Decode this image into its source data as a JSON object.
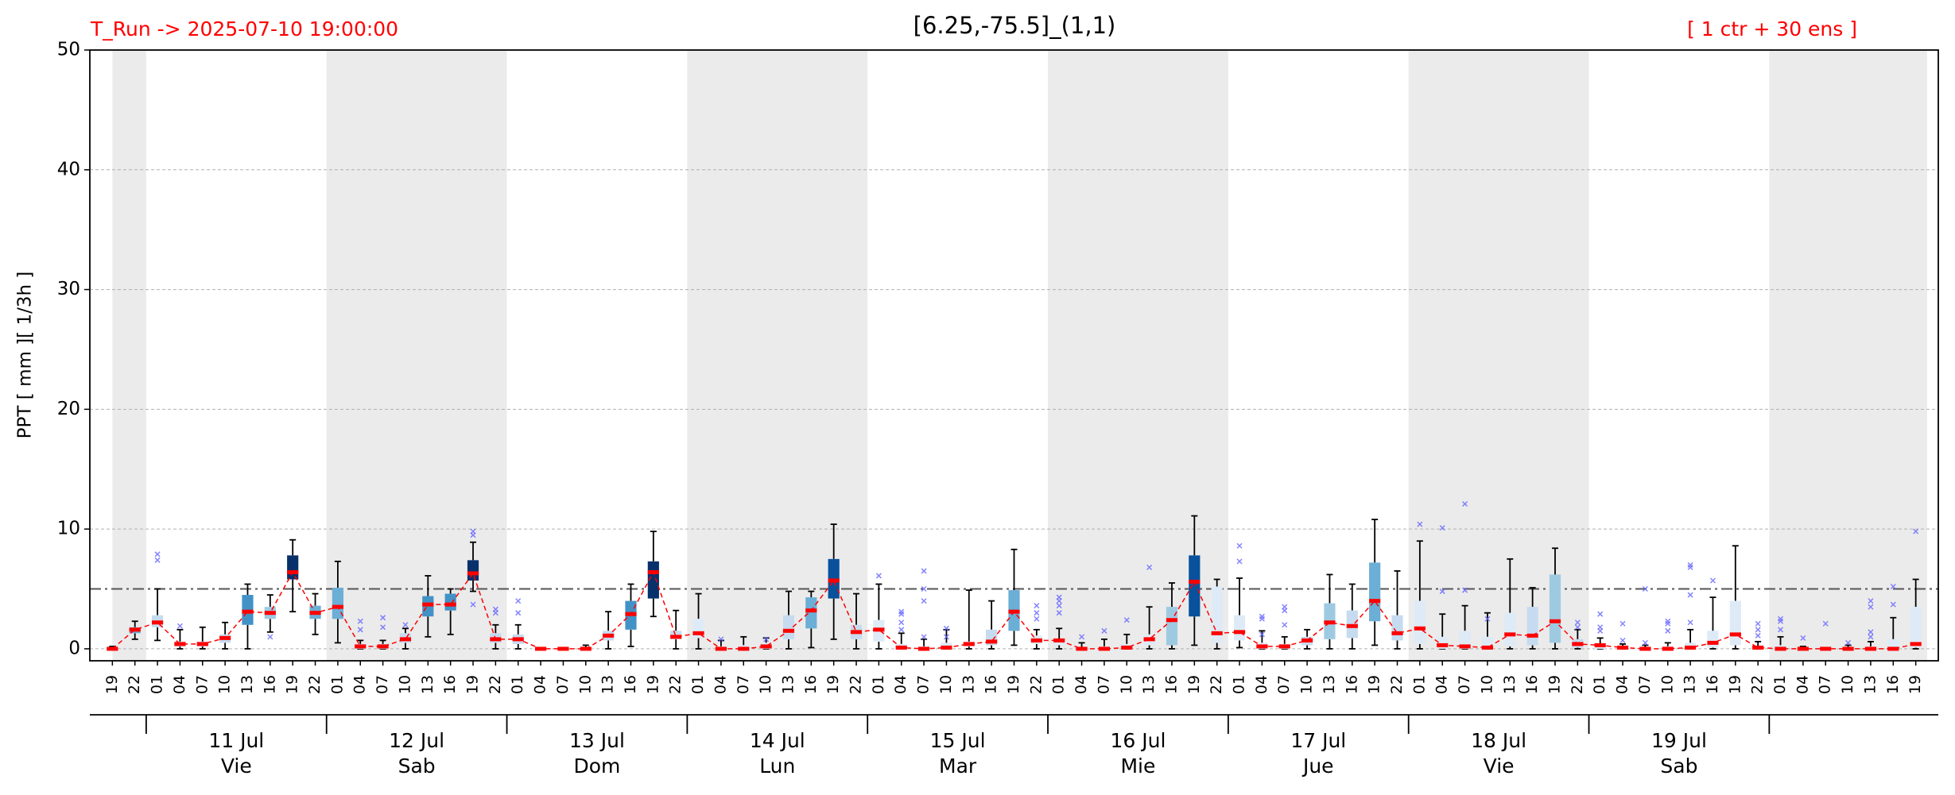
{
  "chart_data": {
    "type": "box",
    "title": "[6.25,-75.5]_(1,1)",
    "run_label": "T_Run -> 2025-07-10  19:00:00",
    "members_label": "[ 1 ctr + 30 ens ]",
    "ylabel": "PPT  [ mm ][ 1/3h ]",
    "ylim": [
      -1,
      50
    ],
    "yticks": [
      0,
      10,
      20,
      30,
      40,
      50
    ],
    "grid": true,
    "threshold": 5,
    "median_color": "#ff0000",
    "outlier_color": "#6666ff",
    "categories": [
      "19",
      "22",
      "01",
      "04",
      "07",
      "10",
      "13",
      "16",
      "19",
      "22",
      "01",
      "04",
      "07",
      "10",
      "13",
      "16",
      "19",
      "22",
      "01",
      "04",
      "07",
      "10",
      "13",
      "16",
      "19",
      "22",
      "01",
      "04",
      "07",
      "10",
      "13",
      "16",
      "19",
      "22",
      "01",
      "04",
      "07",
      "10",
      "13",
      "16",
      "19",
      "22",
      "01",
      "04",
      "07",
      "10",
      "13",
      "16",
      "19",
      "22",
      "01",
      "04",
      "07",
      "10",
      "13",
      "16",
      "19",
      "22",
      "01",
      "04",
      "07",
      "10",
      "13",
      "16",
      "19",
      "22",
      "01",
      "04",
      "07",
      "10",
      "13",
      "16",
      "19",
      "22",
      "01",
      "04",
      "07",
      "10",
      "13",
      "16",
      "19"
    ],
    "days": [
      {
        "date": "11 Jul",
        "weekday": "Vie"
      },
      {
        "date": "12 Jul",
        "weekday": "Sab"
      },
      {
        "date": "13 Jul",
        "weekday": "Dom"
      },
      {
        "date": "14 Jul",
        "weekday": "Lun"
      },
      {
        "date": "15 Jul",
        "weekday": "Mar"
      },
      {
        "date": "16 Jul",
        "weekday": "Mie"
      },
      {
        "date": "17 Jul",
        "weekday": "Jue"
      },
      {
        "date": "18 Jul",
        "weekday": "Vie"
      },
      {
        "date": "19 Jul",
        "weekday": "Sab"
      }
    ],
    "median": [
      0,
      1.6,
      2.2,
      0.4,
      0.4,
      0.9,
      3.1,
      3.0,
      6.4,
      3.0,
      3.5,
      0.2,
      0.2,
      0.8,
      3.7,
      3.7,
      6.3,
      0.8,
      0.8,
      0,
      0,
      0,
      1.1,
      2.9,
      6.4,
      1.0,
      1.3,
      0,
      0,
      0.2,
      1.5,
      3.2,
      5.7,
      1.4,
      1.6,
      0.1,
      0,
      0.1,
      0.4,
      0.6,
      3.1,
      0.7,
      0.7,
      0,
      0,
      0.1,
      0.8,
      2.4,
      5.6,
      1.3,
      1.4,
      0.2,
      0.2,
      0.7,
      2.2,
      1.9,
      4.0,
      1.3,
      1.7,
      0.3,
      0.2,
      0.1,
      1.2,
      1.1,
      2.3,
      0.4,
      0.3,
      0.1,
      0,
      0,
      0.1,
      0.5,
      1.2,
      0.1,
      0,
      0,
      0,
      0,
      0,
      0,
      0.4
    ],
    "q1": [
      0,
      1.3,
      1.8,
      0.2,
      0.2,
      0.5,
      2.0,
      2.5,
      5.8,
      2.5,
      2.5,
      0,
      0,
      0.5,
      2.7,
      3.2,
      5.7,
      0.5,
      0.4,
      0,
      0,
      0,
      0.7,
      1.6,
      4.2,
      0.8,
      0.9,
      0,
      0,
      0,
      0.8,
      1.7,
      4.2,
      0.8,
      0.6,
      0,
      0,
      0,
      0.2,
      0.3,
      1.5,
      0.4,
      0.3,
      0,
      0,
      0,
      0.3,
      0.3,
      2.7,
      0.5,
      0.7,
      0,
      0,
      0.3,
      0.8,
      0.9,
      2.3,
      0.7,
      0.4,
      0,
      0,
      0,
      0.2,
      0.3,
      0.5,
      0.1,
      0,
      0,
      0,
      0,
      0,
      0.1,
      0.3,
      0,
      0,
      0,
      0,
      0,
      0,
      0,
      0.1
    ],
    "q3": [
      0,
      1.8,
      2.8,
      0.6,
      0.6,
      1.2,
      4.5,
      3.5,
      7.8,
      3.6,
      5.1,
      0.4,
      0.4,
      1.3,
      4.4,
      4.6,
      7.4,
      1.3,
      1.2,
      0,
      0,
      0.1,
      1.5,
      4.0,
      7.3,
      1.5,
      2.5,
      0.2,
      0.3,
      0.5,
      2.8,
      4.3,
      7.5,
      2.0,
      2.4,
      0.4,
      0.2,
      0.5,
      0.6,
      1.6,
      4.9,
      1.1,
      0.8,
      0.1,
      0.2,
      0.4,
      1.2,
      3.5,
      7.8,
      5.2,
      2.8,
      0.5,
      0.4,
      1.0,
      3.8,
      3.2,
      7.2,
      2.8,
      4.0,
      1.0,
      1.5,
      1.0,
      3.0,
      3.5,
      6.2,
      0.8,
      0.3,
      0.1,
      0.1,
      0.2,
      0.5,
      1.5,
      4.0,
      0.2,
      0.3,
      0,
      0,
      0.1,
      0.2,
      0.8,
      3.5
    ],
    "whisker_low": [
      0,
      0.8,
      0.7,
      0,
      0,
      0,
      0,
      1.4,
      3.1,
      1.2,
      0.5,
      0,
      0,
      0,
      1.0,
      1.2,
      4.8,
      0,
      0,
      0,
      0,
      0,
      0,
      0.2,
      2.7,
      0,
      0,
      0,
      0,
      0,
      0,
      0.1,
      0.8,
      0,
      0,
      0,
      0,
      0,
      0,
      0,
      0.3,
      0,
      0,
      0,
      0,
      0,
      0,
      0,
      0.3,
      0,
      0.1,
      0,
      0,
      0,
      0,
      0,
      0.3,
      0,
      0,
      0,
      0,
      0,
      0,
      0,
      0,
      0,
      0,
      0,
      0,
      0,
      0,
      0,
      0,
      0,
      0,
      0,
      0,
      0,
      0,
      0,
      0
    ],
    "whisker_high": [
      0.2,
      2.3,
      5.0,
      1.6,
      1.8,
      2.2,
      5.4,
      4.5,
      9.1,
      4.6,
      7.3,
      0.7,
      0.7,
      1.7,
      6.1,
      5.0,
      8.9,
      2.0,
      2.0,
      0,
      0,
      0.3,
      3.1,
      5.4,
      9.8,
      3.2,
      4.6,
      0.7,
      1.0,
      0.9,
      4.8,
      4.8,
      10.4,
      4.6,
      5.4,
      1.3,
      0.8,
      1.6,
      4.9,
      4.0,
      8.3,
      1.6,
      1.7,
      0.5,
      0.8,
      1.2,
      3.5,
      5.5,
      11.1,
      5.8,
      5.9,
      1.5,
      1.0,
      1.6,
      6.2,
      5.4,
      10.8,
      6.5,
      9.0,
      2.9,
      3.6,
      3.0,
      7.5,
      5.1,
      8.4,
      1.6,
      0.9,
      0.4,
      0.3,
      0.5,
      1.6,
      4.3,
      8.6,
      0.6,
      1.0,
      0.2,
      0,
      0.3,
      0.6,
      2.6,
      5.8
    ],
    "outliers": [
      [],
      [],
      [
        7.4,
        7.9
      ],
      [
        1.9
      ],
      [],
      [],
      [],
      [
        1.0
      ],
      [],
      [],
      [],
      [
        1.6,
        2.3
      ],
      [
        1.8,
        2.6
      ],
      [
        2.0
      ],
      [],
      [],
      [
        3.7,
        9.5,
        9.8
      ],
      [
        3.0,
        3.3
      ],
      [
        3.0,
        4.0
      ],
      [],
      [],
      [],
      [],
      [],
      [],
      [],
      [],
      [
        0.8
      ],
      [],
      [
        0.8
      ],
      [],
      [],
      [],
      [],
      [
        6.1
      ],
      [
        1.6,
        2.2,
        2.9,
        3.1
      ],
      [
        1.0,
        4.0,
        5.0,
        6.5
      ],
      [
        1.0,
        1.7
      ],
      [],
      [],
      [],
      [
        2.5,
        3.0,
        3.6
      ],
      [
        3.0,
        3.6,
        4.0,
        4.3
      ],
      [
        1.0
      ],
      [
        1.5
      ],
      [
        2.4
      ],
      [
        6.8
      ],
      [],
      [],
      [],
      [
        7.3,
        8.6
      ],
      [
        1.2,
        2.5,
        2.7
      ],
      [
        2.0,
        3.2,
        3.5
      ],
      [],
      [],
      [],
      [],
      [],
      [
        10.4
      ],
      [
        4.8,
        10.1
      ],
      [
        4.9,
        12.1
      ],
      [
        2.5
      ],
      [],
      [],
      [],
      [
        1.8,
        2.2
      ],
      [
        1.5,
        1.8,
        2.9
      ],
      [
        0.7,
        2.1
      ],
      [
        0.5,
        5.0
      ],
      [
        1.5,
        2.1,
        2.3
      ],
      [
        2.2,
        4.5,
        6.8,
        7.0
      ],
      [
        5.7
      ],
      [],
      [
        1.1,
        1.6,
        2.1
      ],
      [
        1.6,
        2.3,
        2.5
      ],
      [
        0.9
      ],
      [
        2.1
      ],
      [
        0.5
      ],
      [
        1.0,
        1.4,
        3.5,
        4.0
      ],
      [
        3.7,
        5.2
      ],
      [
        9.8
      ]
    ],
    "box_colors": [
      "#deebf7",
      "#6baed6",
      "#c6dbef",
      "#c6dbef",
      "#c6dbef",
      "#c6dbef",
      "#4292c6",
      "#9ecae1",
      "#08306b",
      "#6baed6",
      "#6baed6",
      "#c6dbef",
      "#c6dbef",
      "#c6dbef",
      "#4292c6",
      "#4292c6",
      "#08306b",
      "#c6dbef",
      "#c6dbef",
      "#deebf7",
      "#deebf7",
      "#deebf7",
      "#c6dbef",
      "#4292c6",
      "#08306b",
      "#c6dbef",
      "#deebf7",
      "#deebf7",
      "#deebf7",
      "#deebf7",
      "#c6dbef",
      "#6baed6",
      "#08519c",
      "#c6dbef",
      "#deebf7",
      "#deebf7",
      "#deebf7",
      "#deebf7",
      "#deebf7",
      "#c6dbef",
      "#6baed6",
      "#deebf7",
      "#deebf7",
      "#deebf7",
      "#deebf7",
      "#deebf7",
      "#deebf7",
      "#9ecae1",
      "#08519c",
      "#deebf7",
      "#deebf7",
      "#deebf7",
      "#deebf7",
      "#c6dbef",
      "#9ecae1",
      "#c6dbef",
      "#6baed6",
      "#c6dbef",
      "#deebf7",
      "#deebf7",
      "#deebf7",
      "#deebf7",
      "#deebf7",
      "#c6dbef",
      "#9ecae1",
      "#c6dbef",
      "#deebf7",
      "#deebf7",
      "#deebf7",
      "#deebf7",
      "#deebf7",
      "#deebf7",
      "#deebf7",
      "#deebf7",
      "#deebf7",
      "#deebf7",
      "#deebf7",
      "#deebf7",
      "#deebf7",
      "#deebf7",
      "#deebf7"
    ]
  }
}
